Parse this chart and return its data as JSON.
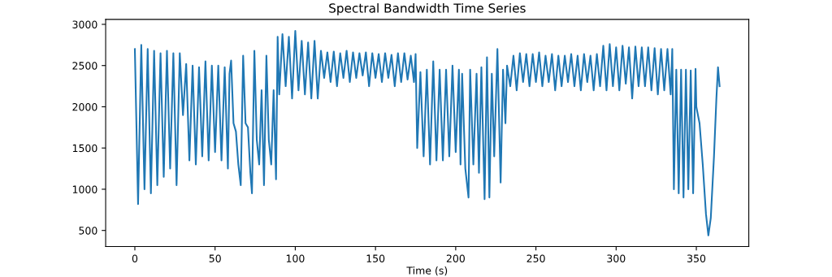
{
  "chart_data": {
    "type": "line",
    "title": "Spectral Bandwidth Time Series",
    "xlabel": "Time (s)",
    "xlim": [
      -18.2,
      382.7
    ],
    "ylim": [
      305,
      3060
    ],
    "xticks": [
      0,
      50,
      100,
      150,
      200,
      250,
      300,
      350
    ],
    "yticks": [
      500,
      1000,
      1500,
      2000,
      2500,
      3000
    ],
    "grid": false,
    "series": [
      {
        "color": "#1f77b4",
        "x": [
          0,
          2,
          4,
          6,
          8,
          10,
          12,
          14,
          16,
          18,
          20,
          22,
          24,
          26,
          28,
          30,
          32,
          34,
          36,
          38,
          40,
          42,
          44,
          46,
          48,
          50,
          52,
          54,
          56,
          58,
          59,
          60,
          61.5,
          63,
          64.5,
          66,
          67.5,
          69,
          70.5,
          72,
          73,
          74.5,
          76,
          77.5,
          79,
          80.5,
          82,
          83.5,
          85,
          86.5,
          88,
          89,
          90,
          92,
          94,
          96,
          98,
          100,
          102,
          104,
          106,
          108,
          110,
          112,
          114,
          116,
          118,
          120,
          122,
          124,
          126,
          128,
          130,
          132,
          134,
          136,
          138,
          140,
          142,
          144,
          146,
          148,
          150,
          152,
          154,
          156,
          158,
          160,
          162,
          164,
          166,
          168,
          170,
          172,
          174,
          175,
          176,
          178,
          180,
          182,
          184,
          186,
          188,
          190,
          192,
          194,
          196,
          198,
          200,
          202,
          203,
          204,
          206,
          208,
          209,
          211,
          213,
          214.5,
          216,
          218,
          219.5,
          221,
          222.5,
          224,
          226,
          228,
          229.5,
          231,
          232,
          234,
          236,
          238,
          240,
          242,
          244,
          246,
          248,
          250,
          252,
          254,
          256,
          258,
          260,
          262,
          264,
          266,
          268,
          270,
          272,
          274,
          276,
          278,
          280,
          282,
          284,
          286,
          288,
          290,
          292,
          294,
          296,
          298,
          300,
          302,
          304,
          306,
          308,
          310,
          312,
          314,
          316,
          318,
          320,
          322,
          324,
          326,
          328,
          330,
          332,
          334,
          335,
          336,
          337.5,
          339,
          340.5,
          342,
          343.5,
          345,
          346.5,
          348,
          349.5,
          350,
          352,
          354,
          356,
          357.5,
          359,
          361,
          362.5,
          363.5,
          364.5
        ],
        "values": [
          2700,
          820,
          2750,
          1000,
          2700,
          950,
          2680,
          1050,
          2650,
          1150,
          2680,
          1250,
          2650,
          1050,
          2650,
          1900,
          2520,
          1350,
          2500,
          1300,
          2480,
          1400,
          2550,
          1350,
          2500,
          1450,
          2500,
          1350,
          2480,
          1250,
          2400,
          2560,
          1800,
          1700,
          1300,
          1050,
          2620,
          1800,
          1750,
          1200,
          950,
          2680,
          1600,
          1300,
          2200,
          1050,
          2620,
          1600,
          1300,
          2200,
          1120,
          2850,
          2150,
          2880,
          2250,
          2850,
          2100,
          2920,
          2200,
          2800,
          2150,
          2780,
          2100,
          2800,
          2100,
          2680,
          2350,
          2660,
          2300,
          2670,
          2250,
          2650,
          2350,
          2680,
          2300,
          2660,
          2350,
          2650,
          2380,
          2660,
          2250,
          2650,
          2350,
          2640,
          2300,
          2650,
          2350,
          2630,
          2250,
          2650,
          2300,
          2650,
          2330,
          2620,
          2300,
          2640,
          1500,
          2420,
          1400,
          2450,
          1300,
          2550,
          1350,
          2450,
          1350,
          2450,
          1400,
          2500,
          1450,
          2450,
          1300,
          2400,
          1250,
          900,
          2450,
          1300,
          2400,
          1200,
          2480,
          880,
          2600,
          900,
          2400,
          1400,
          2700,
          1080,
          2450,
          1800,
          2500,
          2250,
          2620,
          2200,
          2650,
          2300,
          2640,
          2250,
          2640,
          2300,
          2660,
          2250,
          2620,
          2300,
          2640,
          2200,
          2620,
          2250,
          2620,
          2300,
          2640,
          2250,
          2620,
          2200,
          2640,
          2300,
          2620,
          2200,
          2640,
          2250,
          2740,
          2200,
          2760,
          2250,
          2720,
          2200,
          2740,
          2280,
          2720,
          2100,
          2730,
          2250,
          2720,
          2250,
          2720,
          2200,
          2710,
          2150,
          2700,
          2200,
          2700,
          2150,
          2700,
          1000,
          2450,
          950,
          2450,
          900,
          2450,
          1000,
          2440,
          950,
          2460,
          2000,
          1800,
          1300,
          700,
          440,
          650,
          1400,
          2100,
          2480,
          2250
        ]
      }
    ]
  }
}
